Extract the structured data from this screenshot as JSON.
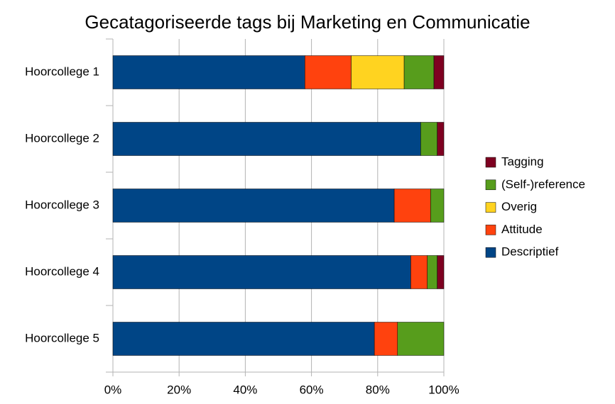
{
  "chart_data": {
    "type": "stacked-bar-horizontal",
    "title": "Gecatagoriseerde tags bij Marketing en Communicatie",
    "categories": [
      "Hoorcollege 1",
      "Hoorcollege 2",
      "Hoorcollege 3",
      "Hoorcollege 4",
      "Hoorcollege 5"
    ],
    "series": [
      {
        "name": "Descriptief",
        "color": "#004586",
        "values": [
          58,
          93,
          85,
          90,
          79
        ]
      },
      {
        "name": "Attitude",
        "color": "#ff420e",
        "values": [
          14,
          0,
          11,
          5,
          7
        ]
      },
      {
        "name": "Overig",
        "color": "#ffd320",
        "values": [
          16,
          0,
          0,
          0,
          0
        ]
      },
      {
        "name": "(Self-)reference",
        "color": "#579d1c",
        "values": [
          9,
          5,
          4,
          3,
          14
        ]
      },
      {
        "name": "Tagging",
        "color": "#7e0021",
        "values": [
          3,
          2,
          0,
          2,
          0
        ]
      }
    ],
    "xlim": [
      0,
      100
    ],
    "xticks": [
      {
        "value": 0,
        "label": "0%"
      },
      {
        "value": 20,
        "label": "20%"
      },
      {
        "value": 40,
        "label": "40%"
      },
      {
        "value": 60,
        "label": "60%"
      },
      {
        "value": 80,
        "label": "80%"
      },
      {
        "value": 100,
        "label": "100%"
      }
    ],
    "grid": true,
    "legend": "right"
  }
}
